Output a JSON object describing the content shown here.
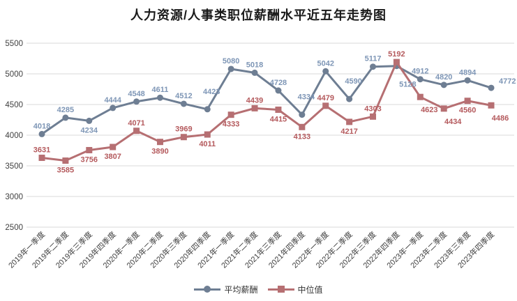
{
  "title": "人力资源/人事类职位薪酬水平近五年走势图",
  "colors": {
    "avg_line": "#6E7E93",
    "avg_label": "#7E96B6",
    "median_line": "#B66F72",
    "median_label": "#B4595C",
    "gridline": "#D9D9D9",
    "axis_text": "#404040",
    "title_text": "#1A1A1A",
    "background": "#FFFFFF"
  },
  "chart_data": {
    "type": "line",
    "title": "人力资源/人事类职位薪酬水平近五年走势图",
    "categories": [
      "2019年一季度",
      "2019年二季度",
      "2019年三季度",
      "2019年四季度",
      "2020年一季度",
      "2020年二季度",
      "2020年三季度",
      "2020年四季度",
      "2021年一季度",
      "2021年二季度",
      "2021年三季度",
      "2021年四季度",
      "2022年一季度",
      "2022年二季度",
      "2022年三季度",
      "2022年四季度",
      "2023年一季度",
      "2023年二季度",
      "2023年三季度",
      "2023年四季度"
    ],
    "series": [
      {
        "name": "平均薪酬",
        "marker": "circle",
        "line_color": "#6E7E93",
        "label_color": "#7E96B6",
        "values": [
          4018,
          4285,
          4234,
          4444,
          4548,
          4611,
          4512,
          4423,
          5080,
          5018,
          4728,
          4334,
          5042,
          4590,
          5117,
          5128,
          4912,
          4820,
          4894,
          4772
        ],
        "label_pos": [
          "a",
          "a",
          "b",
          "a",
          "a",
          "a",
          "a",
          "A",
          "a",
          "a",
          "a",
          "A",
          "a",
          "A",
          "a",
          "B",
          "a",
          "a",
          "a",
          "r"
        ]
      },
      {
        "name": "中位值",
        "marker": "square",
        "line_color": "#B66F72",
        "label_color": "#B4595C",
        "values": [
          3631,
          3585,
          3756,
          3807,
          4071,
          3890,
          3969,
          4011,
          4333,
          4439,
          4415,
          4133,
          4479,
          4217,
          4303,
          5192,
          4623,
          4434,
          4560,
          4486
        ],
        "label_pos": [
          "a",
          "b",
          "b",
          "b",
          "a",
          "b",
          "a",
          "b",
          "b",
          "a",
          "b",
          "b",
          "a",
          "b",
          "a",
          "a",
          "br",
          "br",
          "b",
          "br"
        ]
      }
    ],
    "y_axis": {
      "min": 2500,
      "max": 5500,
      "step": 500,
      "ticks": [
        5500,
        5000,
        4500,
        4000,
        3500,
        3000,
        2500
      ]
    },
    "grid": true,
    "legend_position": "bottom"
  },
  "legend": {
    "items": [
      {
        "label": "平均薪酬"
      },
      {
        "label": "中位值"
      }
    ]
  }
}
